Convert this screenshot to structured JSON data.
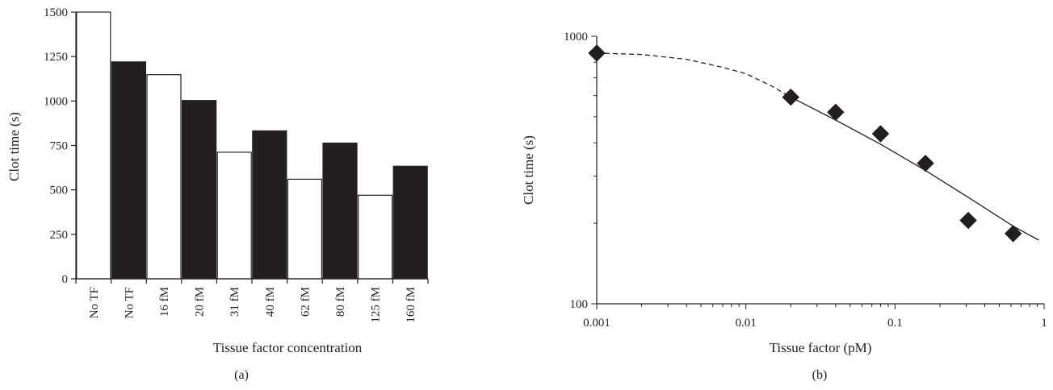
{
  "chart_data": [
    {
      "type": "bar",
      "panel_label": "(a)",
      "xlabel": "Tissue factor concentration",
      "ylabel": "Clot time (s)",
      "ylim": [
        0,
        1500
      ],
      "yticks": [
        0,
        250,
        500,
        750,
        1000,
        1250,
        1500
      ],
      "categories": [
        "No TF",
        "No TF",
        "16 fM",
        "20 fM",
        "31 fM",
        "40 fM",
        "62 fM",
        "80 fM",
        "125 fM",
        "160 fM"
      ],
      "values": [
        1500,
        1220,
        1148,
        1003,
        712,
        832,
        560,
        763,
        470,
        633
      ],
      "fills": [
        "#ffffff",
        "#231f20",
        "#ffffff",
        "#231f20",
        "#ffffff",
        "#231f20",
        "#ffffff",
        "#231f20",
        "#ffffff",
        "#231f20"
      ],
      "grid": false
    },
    {
      "type": "scatter",
      "panel_label": "(b)",
      "xlabel": "Tissue factor (pM)",
      "ylabel": "Clot time (s)",
      "xscale": "log",
      "yscale": "log",
      "xlim": [
        0.001,
        1
      ],
      "ylim": [
        100,
        1000
      ],
      "xticks": [
        0.001,
        0.01,
        0.1,
        1
      ],
      "xtick_labels": [
        "0.001",
        "0.01",
        "0.1",
        "1"
      ],
      "yticks": [
        100,
        1000
      ],
      "ytick_labels": [
        "100",
        "1000"
      ],
      "marker": "diamond",
      "points": [
        {
          "x": 0.001,
          "y": 865
        },
        {
          "x": 0.02,
          "y": 592
        },
        {
          "x": 0.04,
          "y": 520
        },
        {
          "x": 0.08,
          "y": 432
        },
        {
          "x": 0.16,
          "y": 335
        },
        {
          "x": 0.31,
          "y": 205
        },
        {
          "x": 0.62,
          "y": 183
        }
      ],
      "fit_dashed": [
        {
          "x": 0.001,
          "y": 865
        },
        {
          "x": 0.002,
          "y": 855
        },
        {
          "x": 0.004,
          "y": 820
        },
        {
          "x": 0.007,
          "y": 765
        },
        {
          "x": 0.01,
          "y": 725
        },
        {
          "x": 0.015,
          "y": 650
        },
        {
          "x": 0.02,
          "y": 592
        }
      ],
      "fit_solid": [
        {
          "x": 0.02,
          "y": 592
        },
        {
          "x": 0.04,
          "y": 486
        },
        {
          "x": 0.08,
          "y": 395
        },
        {
          "x": 0.16,
          "y": 315
        },
        {
          "x": 0.31,
          "y": 250
        },
        {
          "x": 0.62,
          "y": 195
        },
        {
          "x": 0.92,
          "y": 173
        }
      ],
      "grid": false
    }
  ]
}
